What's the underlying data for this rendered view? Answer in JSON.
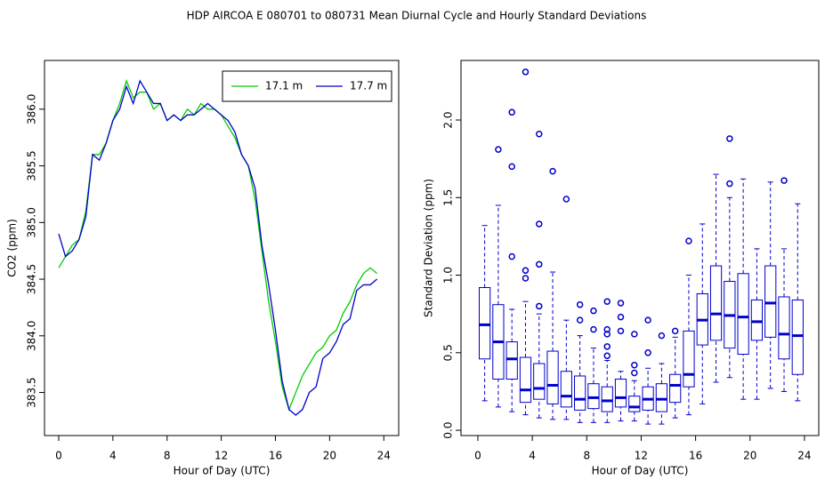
{
  "title": "HDP   AIRCOA E   080701 to 080731   Mean Diurnal Cycle and Hourly Standard Deviations",
  "chart_data": [
    {
      "type": "line",
      "xlabel": "Hour of Day (UTC)",
      "ylabel": "CO2 (ppm)",
      "xlim": [
        -1.05,
        25.1
      ],
      "ylim": [
        383.12,
        386.43
      ],
      "xticks": [
        0,
        4,
        8,
        12,
        16,
        20,
        24
      ],
      "yticks": [
        383.5,
        {
          "value": 384,
          "label": "384.0"
        },
        384.5,
        {
          "value": 385,
          "label": "385.0"
        },
        385.5,
        {
          "value": 386,
          "label": "386.0"
        }
      ],
      "legend": "topright",
      "x": [
        0,
        0.5,
        1,
        1.5,
        2,
        2.5,
        3,
        3.5,
        4,
        4.5,
        5,
        5.5,
        6,
        6.5,
        7,
        7.5,
        8,
        8.5,
        9,
        9.5,
        10,
        10.5,
        11,
        11.5,
        12,
        12.5,
        13,
        13.5,
        14,
        14.5,
        15,
        15.5,
        16,
        16.5,
        17,
        17.5,
        18,
        18.5,
        19,
        19.5,
        20,
        20.5,
        21,
        21.5,
        22,
        22.5,
        23,
        23.5
      ],
      "series": [
        {
          "name": "17.1 m",
          "color": "#00cc00",
          "values": [
            384.6,
            384.7,
            384.8,
            384.85,
            385.1,
            385.6,
            385.6,
            385.7,
            385.9,
            386.05,
            386.25,
            386.1,
            386.15,
            386.15,
            386.0,
            386.05,
            385.9,
            385.95,
            385.9,
            386.0,
            385.95,
            386.05,
            386.0,
            386.0,
            385.95,
            385.85,
            385.75,
            385.6,
            385.5,
            385.2,
            384.75,
            384.3,
            383.95,
            383.55,
            383.35,
            383.5,
            383.65,
            383.75,
            383.85,
            383.9,
            384.0,
            384.05,
            384.2,
            384.3,
            384.45,
            384.55,
            384.6,
            384.55
          ]
        },
        {
          "name": "17.7 m",
          "color": "#0000cc",
          "values": [
            384.9,
            384.7,
            384.75,
            384.85,
            385.05,
            385.6,
            385.55,
            385.7,
            385.9,
            386.0,
            386.2,
            386.05,
            386.25,
            386.15,
            386.05,
            386.05,
            385.9,
            385.95,
            385.9,
            385.95,
            385.95,
            386.0,
            386.05,
            386.0,
            385.95,
            385.9,
            385.8,
            385.6,
            385.5,
            385.3,
            384.8,
            384.45,
            384.05,
            383.6,
            383.35,
            383.3,
            383.35,
            383.5,
            383.55,
            383.8,
            383.85,
            383.95,
            384.1,
            384.15,
            384.4,
            384.45,
            384.45,
            384.5
          ]
        }
      ]
    },
    {
      "type": "box",
      "xlabel": "Hour of Day (UTC)",
      "ylabel": "Standard Deviation (ppm)",
      "xlim": [
        -1.24,
        25.05
      ],
      "ylim": [
        -0.034,
        2.384
      ],
      "xticks": [
        0,
        4,
        8,
        12,
        16,
        20,
        24
      ],
      "yticks": [
        {
          "value": 0,
          "label": "0.0"
        },
        0.5,
        {
          "value": 1,
          "label": "1.0"
        },
        1.5,
        {
          "value": 2,
          "label": "2.0"
        }
      ],
      "color": "#0000cc",
      "boxes": [
        {
          "x": 0.5,
          "low": 0.19,
          "q1": 0.46,
          "median": 0.68,
          "q3": 0.92,
          "high": 1.32,
          "outliers": []
        },
        {
          "x": 1.5,
          "low": 0.15,
          "q1": 0.33,
          "median": 0.57,
          "q3": 0.81,
          "high": 1.45,
          "outliers": [
            1.81
          ]
        },
        {
          "x": 2.5,
          "low": 0.12,
          "q1": 0.33,
          "median": 0.46,
          "q3": 0.57,
          "high": 0.78,
          "outliers": [
            1.12,
            1.7,
            2.05
          ]
        },
        {
          "x": 3.5,
          "low": 0.1,
          "q1": 0.18,
          "median": 0.26,
          "q3": 0.47,
          "high": 0.83,
          "outliers": [
            0.98,
            1.03,
            2.31
          ]
        },
        {
          "x": 4.5,
          "low": 0.08,
          "q1": 0.2,
          "median": 0.27,
          "q3": 0.43,
          "high": 0.75,
          "outliers": [
            0.8,
            1.07,
            1.33,
            1.91
          ]
        },
        {
          "x": 5.5,
          "low": 0.07,
          "q1": 0.17,
          "median": 0.29,
          "q3": 0.51,
          "high": 1.02,
          "outliers": [
            1.67
          ]
        },
        {
          "x": 6.5,
          "low": 0.07,
          "q1": 0.15,
          "median": 0.22,
          "q3": 0.38,
          "high": 0.71,
          "outliers": [
            1.49
          ]
        },
        {
          "x": 7.5,
          "low": 0.05,
          "q1": 0.13,
          "median": 0.2,
          "q3": 0.35,
          "high": 0.61,
          "outliers": [
            0.71,
            0.81
          ]
        },
        {
          "x": 8.5,
          "low": 0.05,
          "q1": 0.14,
          "median": 0.21,
          "q3": 0.3,
          "high": 0.53,
          "outliers": [
            0.65,
            0.77
          ]
        },
        {
          "x": 9.5,
          "low": 0.05,
          "q1": 0.12,
          "median": 0.19,
          "q3": 0.28,
          "high": 0.45,
          "outliers": [
            0.48,
            0.54,
            0.62,
            0.65,
            0.83
          ]
        },
        {
          "x": 10.5,
          "low": 0.06,
          "q1": 0.15,
          "median": 0.21,
          "q3": 0.33,
          "high": 0.38,
          "outliers": [
            0.64,
            0.73,
            0.82
          ]
        },
        {
          "x": 11.5,
          "low": 0.06,
          "q1": 0.12,
          "median": 0.15,
          "q3": 0.22,
          "high": 0.32,
          "outliers": [
            0.37,
            0.42,
            0.62
          ]
        },
        {
          "x": 12.5,
          "low": 0.04,
          "q1": 0.13,
          "median": 0.2,
          "q3": 0.28,
          "high": 0.4,
          "outliers": [
            0.5,
            0.71
          ]
        },
        {
          "x": 13.5,
          "low": 0.04,
          "q1": 0.12,
          "median": 0.2,
          "q3": 0.3,
          "high": 0.43,
          "outliers": [
            0.61
          ]
        },
        {
          "x": 14.5,
          "low": 0.08,
          "q1": 0.18,
          "median": 0.29,
          "q3": 0.36,
          "high": 0.6,
          "outliers": [
            0.64
          ]
        },
        {
          "x": 15.5,
          "low": 0.1,
          "q1": 0.28,
          "median": 0.36,
          "q3": 0.64,
          "high": 1.0,
          "outliers": [
            1.22
          ]
        },
        {
          "x": 16.5,
          "low": 0.17,
          "q1": 0.55,
          "median": 0.71,
          "q3": 0.88,
          "high": 1.33,
          "outliers": []
        },
        {
          "x": 17.5,
          "low": 0.31,
          "q1": 0.58,
          "median": 0.75,
          "q3": 1.06,
          "high": 1.65,
          "outliers": []
        },
        {
          "x": 18.5,
          "low": 0.34,
          "q1": 0.53,
          "median": 0.74,
          "q3": 0.96,
          "high": 1.5,
          "outliers": [
            1.59,
            1.88
          ]
        },
        {
          "x": 19.5,
          "low": 0.2,
          "q1": 0.49,
          "median": 0.73,
          "q3": 1.01,
          "high": 1.62,
          "outliers": []
        },
        {
          "x": 20.5,
          "low": 0.2,
          "q1": 0.58,
          "median": 0.7,
          "q3": 0.84,
          "high": 1.17,
          "outliers": []
        },
        {
          "x": 21.5,
          "low": 0.27,
          "q1": 0.6,
          "median": 0.82,
          "q3": 1.06,
          "high": 1.6,
          "outliers": []
        },
        {
          "x": 22.5,
          "low": 0.25,
          "q1": 0.46,
          "median": 0.62,
          "q3": 0.86,
          "high": 1.17,
          "outliers": [
            1.61
          ]
        },
        {
          "x": 23.5,
          "low": 0.19,
          "q1": 0.36,
          "median": 0.61,
          "q3": 0.84,
          "high": 1.46,
          "outliers": []
        }
      ]
    }
  ]
}
